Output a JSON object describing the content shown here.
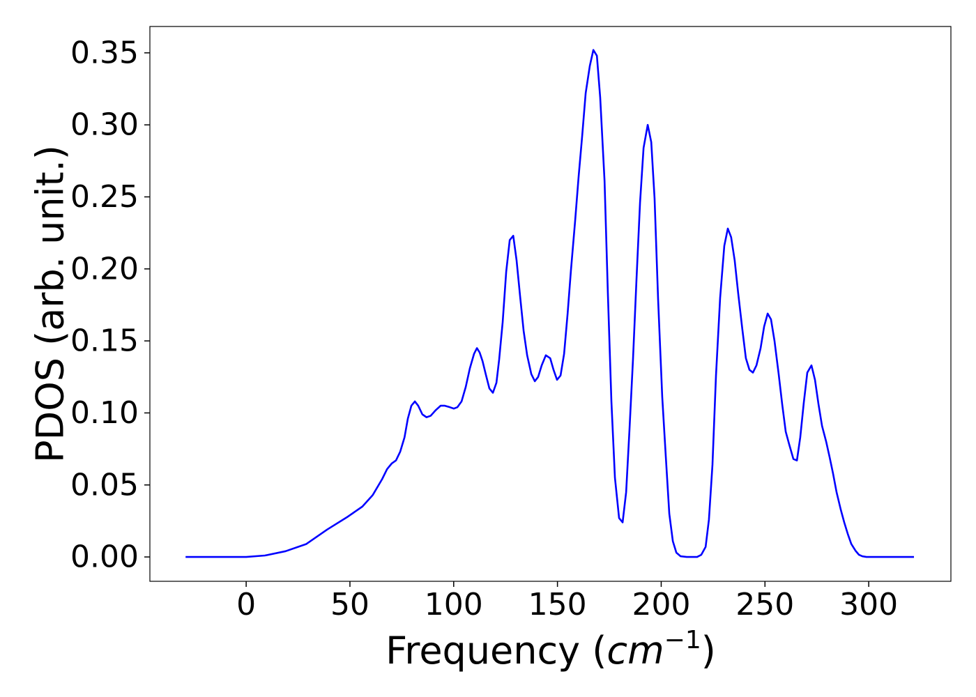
{
  "chart_data": {
    "type": "line",
    "xlabel_parts": [
      "Frequency (",
      "cm",
      "−1",
      ")"
    ],
    "ylabel": "PDOS (arb. unit.)",
    "xlim": [
      -46.4,
      339.6
    ],
    "ylim": [
      -0.0169,
      0.3683
    ],
    "xticks": [
      0,
      50,
      100,
      150,
      200,
      250,
      300
    ],
    "yticks": [
      {
        "value": 0,
        "label": "0.00"
      },
      {
        "value": 0.05,
        "label": "0.05"
      },
      {
        "value": 0.1,
        "label": "0.10"
      },
      {
        "value": 0.15,
        "label": "0.15"
      },
      {
        "value": 0.2,
        "label": "0.20"
      },
      {
        "value": 0.25,
        "label": "0.25"
      },
      {
        "value": 0.3,
        "label": "0.30"
      },
      {
        "value": 0.35,
        "label": "0.35"
      }
    ],
    "grid": false,
    "series": [
      {
        "color": "#0000ff",
        "x": [
          -29.2,
          0,
          9,
          19,
          29,
          39,
          49,
          56,
          61,
          65.5,
          67.9,
          70.2,
          72.2,
          74.2,
          76.3,
          77.9,
          79.6,
          81.3,
          82.9,
          84.9,
          86.9,
          88.9,
          91.4,
          93.7,
          95.7,
          98.1,
          100.1,
          101.8,
          103.8,
          105.8,
          107.8,
          109.8,
          111.2,
          112.5,
          113.9,
          115.6,
          117.2,
          118.9,
          120.6,
          121.9,
          123.6,
          125.3,
          127.0,
          128.7,
          130.3,
          132.0,
          133.7,
          135.4,
          137.4,
          139.1,
          140.7,
          142.4,
          144.4,
          146.5,
          148.1,
          149.8,
          151.5,
          153.2,
          154.9,
          156.5,
          158.5,
          160.2,
          161.9,
          163.6,
          165.6,
          167.3,
          169.0,
          170.6,
          172.7,
          174.3,
          176.0,
          177.7,
          179.7,
          181.4,
          183.1,
          184.7,
          186.4,
          188.1,
          189.8,
          191.5,
          193.5,
          195.2,
          196.8,
          198.5,
          200.5,
          202.2,
          203.9,
          205.6,
          207.3,
          209.3,
          212.3,
          217.3,
          219.3,
          221.4,
          223.0,
          224.7,
          226.4,
          228.4,
          230.4,
          232.1,
          233.7,
          235.4,
          237.1,
          239.1,
          240.8,
          242.5,
          244.2,
          245.9,
          247.9,
          249.6,
          251.3,
          252.9,
          254.6,
          256.6,
          258.3,
          260.0,
          261.7,
          263.7,
          265.4,
          267.0,
          268.7,
          270.4,
          272.4,
          274.1,
          275.8,
          277.5,
          279.5,
          281.2,
          282.8,
          284.5,
          286.5,
          288.2,
          289.9,
          291.6,
          293.6,
          295.3,
          296.9,
          298.9,
          321.8
        ],
        "values": [
          0,
          0,
          0.001,
          0.004,
          0.009,
          0.019,
          0.028,
          0.035,
          0.043,
          0.054,
          0.061,
          0.065,
          0.067,
          0.073,
          0.083,
          0.096,
          0.105,
          0.108,
          0.105,
          0.099,
          0.097,
          0.098,
          0.102,
          0.105,
          0.105,
          0.104,
          0.103,
          0.104,
          0.108,
          0.118,
          0.131,
          0.141,
          0.145,
          0.142,
          0.136,
          0.126,
          0.117,
          0.114,
          0.121,
          0.137,
          0.163,
          0.198,
          0.22,
          0.223,
          0.206,
          0.181,
          0.157,
          0.14,
          0.127,
          0.122,
          0.125,
          0.133,
          0.14,
          0.138,
          0.13,
          0.123,
          0.126,
          0.141,
          0.169,
          0.199,
          0.233,
          0.264,
          0.292,
          0.322,
          0.341,
          0.352,
          0.348,
          0.319,
          0.261,
          0.183,
          0.108,
          0.055,
          0.027,
          0.024,
          0.045,
          0.088,
          0.137,
          0.193,
          0.246,
          0.284,
          0.3,
          0.288,
          0.249,
          0.179,
          0.111,
          0.07,
          0.03,
          0.011,
          0.003,
          0.0005,
          0,
          0,
          0.0015,
          0.007,
          0.026,
          0.064,
          0.126,
          0.18,
          0.216,
          0.228,
          0.222,
          0.206,
          0.183,
          0.158,
          0.138,
          0.13,
          0.128,
          0.133,
          0.145,
          0.16,
          0.169,
          0.165,
          0.15,
          0.127,
          0.106,
          0.087,
          0.078,
          0.068,
          0.067,
          0.083,
          0.107,
          0.128,
          0.133,
          0.123,
          0.106,
          0.091,
          0.08,
          0.069,
          0.058,
          0.045,
          0.033,
          0.024,
          0.016,
          0.009,
          0.0044,
          0.0015,
          0.0005,
          0,
          0
        ]
      }
    ]
  }
}
